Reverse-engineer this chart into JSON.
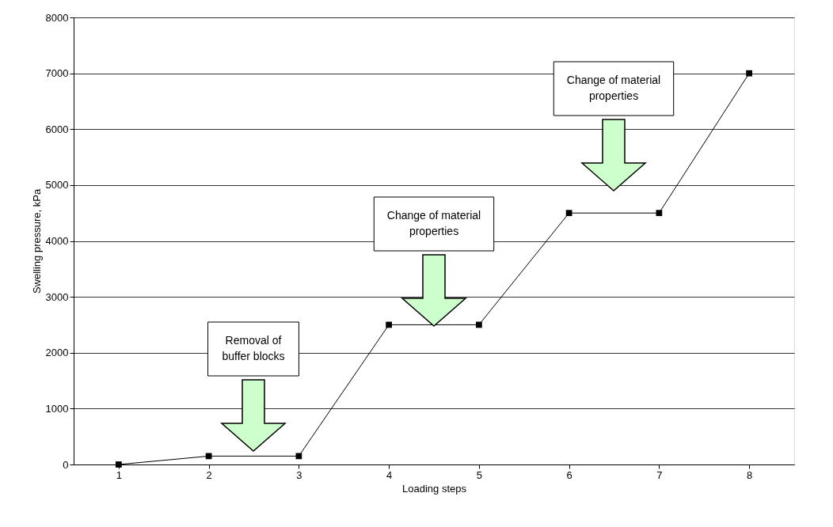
{
  "chart_data": {
    "type": "line",
    "xlabel": "Loading steps",
    "ylabel": "Swelling pressure, kPa",
    "x": [
      1,
      2,
      3,
      4,
      5,
      6,
      7,
      8
    ],
    "series": [
      {
        "color": "#000000",
        "values": [
          0,
          150,
          150,
          2500,
          2500,
          4500,
          4500,
          7000
        ]
      }
    ],
    "xlim": [
      0.5,
      8.5
    ],
    "xticks": [
      1,
      2,
      3,
      4,
      5,
      6,
      7,
      8
    ],
    "ylim": [
      0,
      8000
    ],
    "yticks": [
      0,
      1000,
      2000,
      3000,
      4000,
      5000,
      6000,
      7000,
      8000
    ],
    "grid": "y",
    "marker": "square",
    "line_style": "solid",
    "annotations": [
      "Removal of\nbuffer blocks",
      "Change of material\nproperties",
      "Change of material\nproperties"
    ]
  }
}
